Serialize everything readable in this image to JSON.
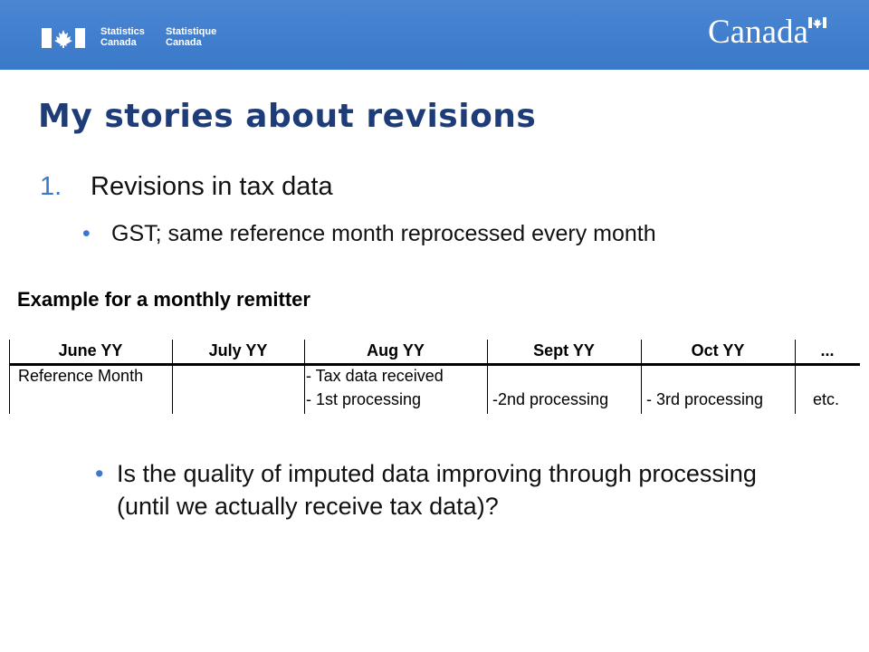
{
  "header": {
    "agency_en_line1": "Statistics",
    "agency_en_line2": "Canada",
    "agency_fr_line1": "Statistique",
    "agency_fr_line2": "Canada",
    "wordmark": "Canada",
    "bar_color": "#3a78c9"
  },
  "slide": {
    "title": "My stories about revisions",
    "item_number": "1.",
    "item_text": "Revisions in tax data",
    "sub_bullet": "GST; same reference month reprocessed every month",
    "question": "Is the quality of imputed data improving through processing (until we actually receive tax data)?",
    "title_color": "#1e3d78",
    "accent_color": "#3a78c9"
  },
  "example": {
    "title": "Example for a monthly remitter",
    "columns": [
      "June YY",
      "July YY",
      "Aug YY",
      "Sept YY",
      "Oct YY",
      "..."
    ],
    "rows": [
      [
        "Reference Month",
        "",
        "- Tax data received",
        "",
        "",
        ""
      ],
      [
        "",
        "",
        "- 1st processing",
        "-2nd processing",
        "- 3rd processing",
        "etc."
      ]
    ]
  }
}
